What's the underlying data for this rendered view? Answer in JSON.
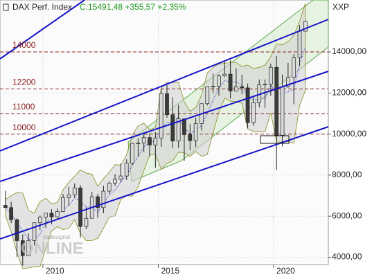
{
  "chart_data": {
    "type": "candlestick",
    "title": "DAX Perf. Index",
    "subtitle": "C:15491,48 +355,57 +2,35%",
    "axis_label": "XXP",
    "watermark": [
      "tradesignal",
      "ONLINE"
    ],
    "xlim": [
      2008.14,
      2022.37
    ],
    "xticks": [
      2010,
      2015,
      2020
    ],
    "ylim": [
      3646,
      16530
    ],
    "yticks": [
      {
        "value": 4000,
        "label": "4000,00"
      },
      {
        "value": 6000,
        "label": "6000,00"
      },
      {
        "value": 8000,
        "label": "8000,00"
      },
      {
        "value": 10000,
        "label": "10000,00"
      },
      {
        "value": 12000,
        "label": "12000,00"
      },
      {
        "value": 14000,
        "label": "14000,00"
      }
    ],
    "levels": [
      14000,
      12200,
      11000,
      10000
    ],
    "up_color": "#d9d9d9",
    "down_color": "#3c3c3c",
    "x": [
      2008.375,
      2008.625,
      2008.875,
      2009.125,
      2009.375,
      2009.625,
      2009.875,
      2010.125,
      2010.375,
      2010.625,
      2010.875,
      2011.125,
      2011.375,
      2011.625,
      2011.875,
      2012.125,
      2012.375,
      2012.625,
      2012.875,
      2013.125,
      2013.375,
      2013.625,
      2013.875,
      2014.125,
      2014.375,
      2014.625,
      2014.875,
      2015.125,
      2015.375,
      2015.625,
      2015.875,
      2016.125,
      2016.375,
      2016.625,
      2016.875,
      2017.125,
      2017.375,
      2017.625,
      2017.875,
      2018.125,
      2018.375,
      2018.625,
      2018.875,
      2019.125,
      2019.375,
      2019.625,
      2019.875,
      2020.125,
      2020.375,
      2020.625,
      2020.875,
      2021.125,
      2021.375
    ],
    "open": [
      6530,
      6420,
      5830,
      4810,
      4080,
      4810,
      5680,
      5960,
      6150,
      5970,
      6230,
      6910,
      7040,
      7380,
      5500,
      5900,
      6950,
      6420,
      7220,
      7610,
      7800,
      7960,
      8590,
      9550,
      9560,
      9830,
      9470,
      9810,
      11970,
      10940,
      9660,
      10740,
      9970,
      9680,
      10510,
      11480,
      12310,
      12330,
      12830,
      12920,
      12100,
      12310,
      12250,
      10560,
      11530,
      12400,
      12430,
      13250,
      9940,
      12310,
      12760,
      13720,
      15010
    ],
    "high": [
      7230,
      6700,
      5900,
      5110,
      5160,
      5700,
      6030,
      6160,
      6340,
      6380,
      7080,
      7440,
      7600,
      7520,
      6430,
      7190,
      7090,
      7480,
      7700,
      8060,
      8560,
      8770,
      9590,
      9790,
      10050,
      10030,
      10090,
      12220,
      12390,
      11800,
      11430,
      10750,
      10480,
      10800,
      11480,
      12310,
      12950,
      12900,
      13530,
      13600,
      13200,
      12890,
      12460,
      11830,
      12660,
      12660,
      13430,
      13800,
      12900,
      13460,
      13900,
      15310,
      15530
    ],
    "low": [
      6420,
      5660,
      4010,
      3590,
      4050,
      4580,
      5330,
      5430,
      5610,
      5810,
      6200,
      6510,
      6900,
      4960,
      5370,
      5900,
      5910,
      6150,
      7080,
      7480,
      7670,
      7760,
      8470,
      8910,
      9120,
      8900,
      8350,
      9380,
      10800,
      9320,
      9330,
      8700,
      9210,
      9370,
      10170,
      11400,
      12000,
      11870,
      12770,
      11730,
      12100,
      11940,
      10280,
      10400,
      11300,
      11270,
      11870,
      8260,
      9400,
      12250,
      11450,
      13310,
      15000
    ],
    "close": [
      6420,
      5830,
      4810,
      4080,
      4810,
      5680,
      5960,
      6150,
      5970,
      6230,
      6910,
      7040,
      7380,
      5500,
      5900,
      6950,
      6420,
      7220,
      7610,
      7800,
      7960,
      8590,
      9550,
      9560,
      9830,
      9470,
      9810,
      11970,
      10940,
      9660,
      10740,
      9970,
      9680,
      10510,
      11480,
      12310,
      12330,
      12830,
      12920,
      12100,
      12310,
      12250,
      10560,
      11530,
      12400,
      12430,
      13250,
      9940,
      12310,
      12760,
      13720,
      15010,
      15490
    ]
  }
}
